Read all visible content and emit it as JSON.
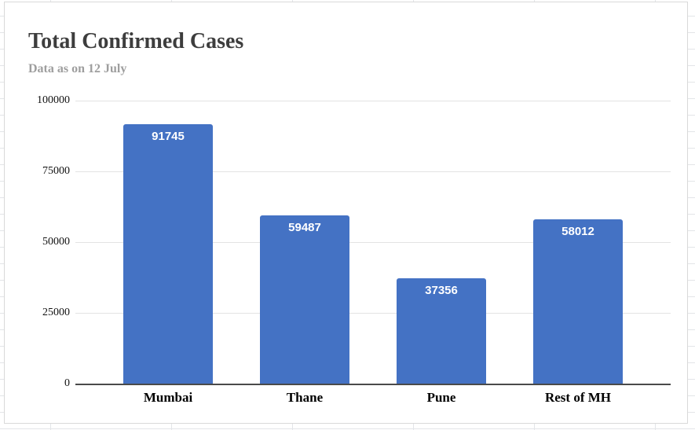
{
  "chart_data": {
    "type": "bar",
    "title": "Total Confirmed Cases",
    "subtitle": "Data as on 12 July",
    "categories": [
      "Mumbai",
      "Thane",
      "Pune",
      "Rest of MH"
    ],
    "values": [
      91745,
      59487,
      37356,
      58012
    ],
    "bar_value_labels": [
      "91745",
      "59487",
      "37356",
      "58012"
    ],
    "xlabel": "",
    "ylabel": "",
    "ylim": [
      0,
      100000
    ],
    "yticks": [
      0,
      25000,
      50000,
      75000,
      100000
    ],
    "ytick_labels": [
      "0",
      "25000",
      "50000",
      "75000",
      "100000"
    ],
    "grid": true,
    "legend_position": "none",
    "colors": {
      "bar": "#4472c4",
      "bar_label": "#ffffff",
      "title": "#3d3d3d",
      "subtitle": "#9e9e9e",
      "gridline": "#e3e3e3",
      "axis_line": "#4a4a4a",
      "tick_label": "#111111",
      "card_border": "#d9d9d9"
    }
  }
}
